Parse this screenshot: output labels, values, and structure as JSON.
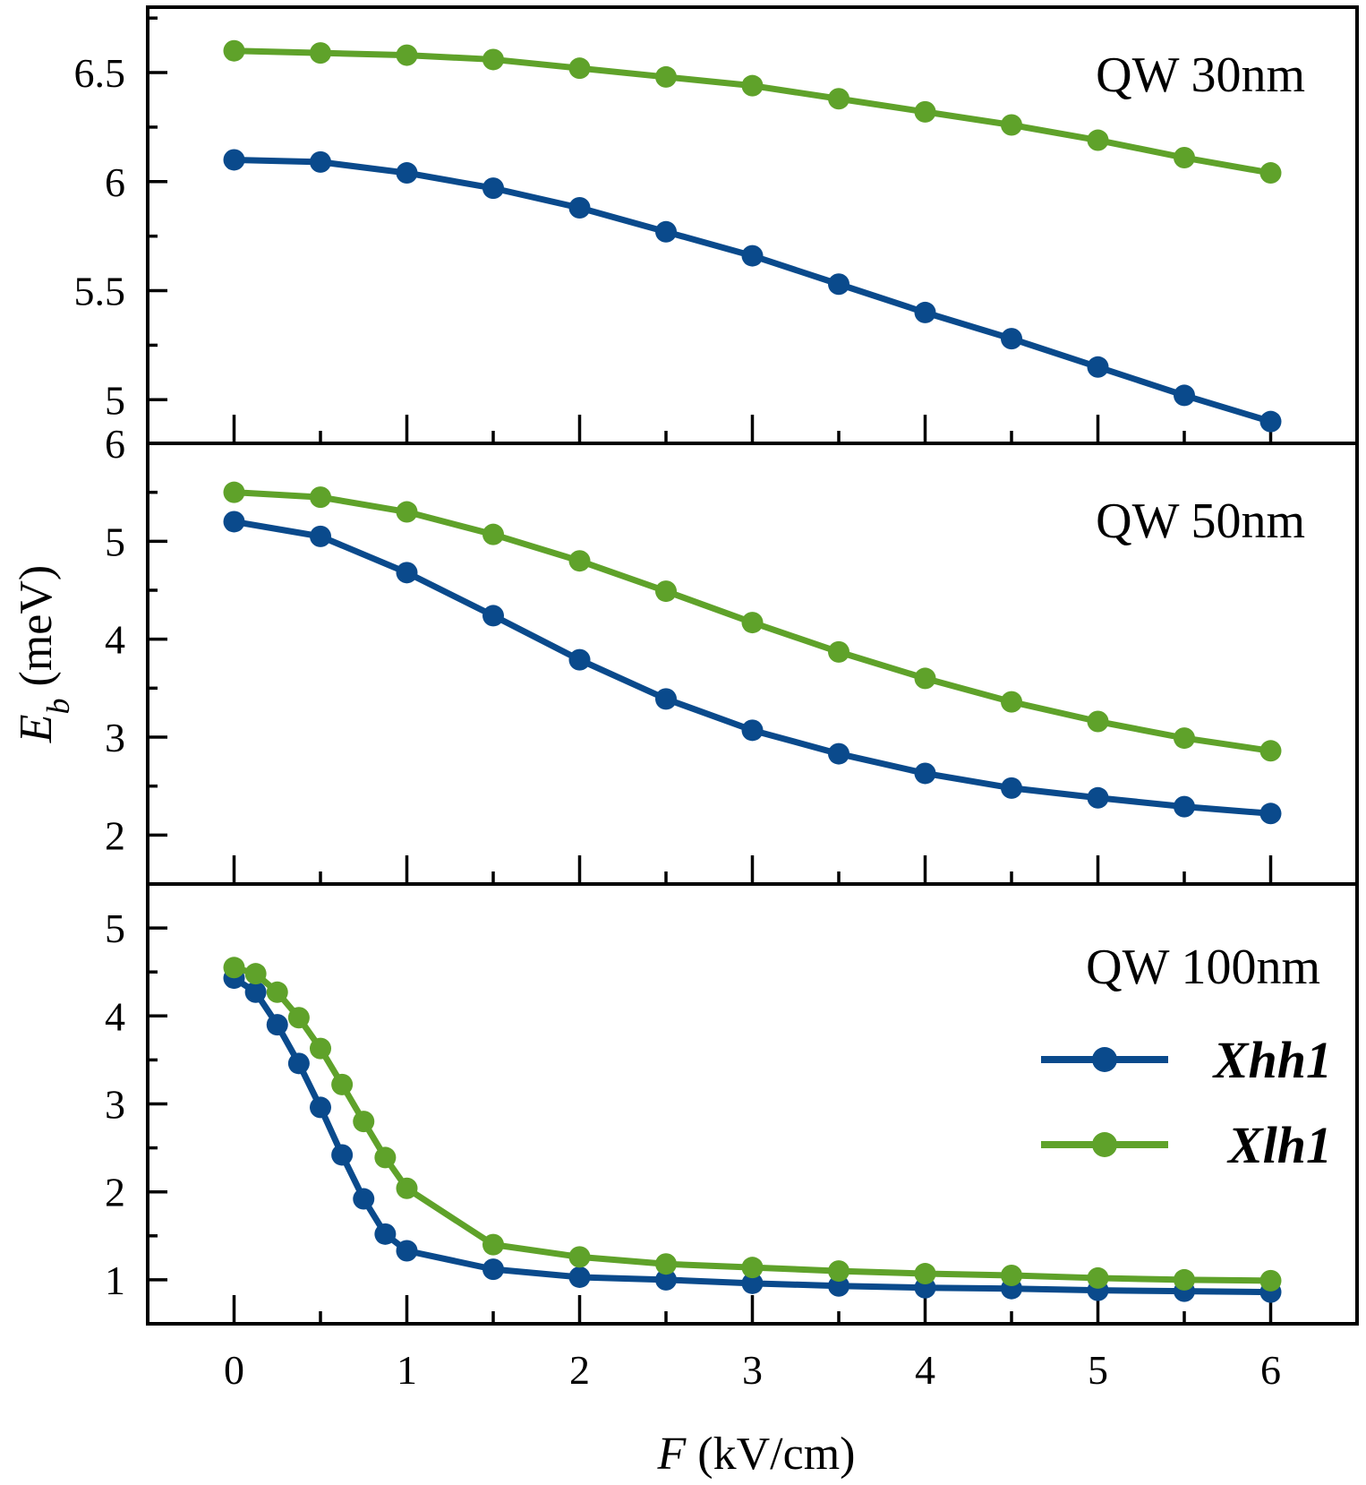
{
  "chart_data": {
    "type": "line",
    "xlabel_symbol": "F",
    "xlabel_unit": " (kV/cm)",
    "ylabel_symbol": "E",
    "ylabel_subscript": "b",
    "ylabel_unit": " (meV)",
    "xlim": [
      -0.5,
      6.5
    ],
    "xticks": [
      0,
      1,
      2,
      3,
      4,
      5,
      6
    ],
    "xtick_labels": [
      "0",
      "1",
      "2",
      "3",
      "4",
      "5",
      "6"
    ],
    "colors": {
      "Xhh1": "#0a4a8c",
      "Xlh1": "#5fa22a"
    },
    "legend": {
      "placement": "right",
      "entries": [
        "Xhh1",
        "Xlh1"
      ]
    },
    "panels": [
      {
        "label": "QW 30nm",
        "ylim": [
          4.8,
          6.8
        ],
        "yticks": [
          5,
          5.5,
          6,
          6.5
        ],
        "ytick_labels": [
          "5",
          "5.5",
          "6",
          "6.5"
        ],
        "series": [
          {
            "name": "Xhh1",
            "x": [
              0,
              0.5,
              1,
              1.5,
              2,
              2.5,
              3,
              3.5,
              4,
              4.5,
              5,
              5.5,
              6
            ],
            "y": [
              6.1,
              6.09,
              6.04,
              5.97,
              5.88,
              5.77,
              5.66,
              5.53,
              5.4,
              5.28,
              5.15,
              5.02,
              4.9
            ]
          },
          {
            "name": "Xlh1",
            "x": [
              0,
              0.5,
              1,
              1.5,
              2,
              2.5,
              3,
              3.5,
              4,
              4.5,
              5,
              5.5,
              6
            ],
            "y": [
              6.6,
              6.59,
              6.58,
              6.56,
              6.52,
              6.48,
              6.44,
              6.38,
              6.32,
              6.26,
              6.19,
              6.11,
              6.04
            ]
          }
        ]
      },
      {
        "label": "QW 50nm",
        "ylim": [
          1.5,
          6.0
        ],
        "yticks": [
          2,
          3,
          4,
          5,
          6
        ],
        "ytick_labels": [
          "2",
          "3",
          "4",
          "5",
          "6"
        ],
        "series": [
          {
            "name": "Xhh1",
            "x": [
              0,
              0.5,
              1,
              1.5,
              2,
              2.5,
              3,
              3.5,
              4,
              4.5,
              5,
              5.5,
              6
            ],
            "y": [
              5.2,
              5.05,
              4.68,
              4.24,
              3.79,
              3.39,
              3.07,
              2.83,
              2.63,
              2.48,
              2.38,
              2.29,
              2.22
            ]
          },
          {
            "name": "Xlh1",
            "x": [
              0,
              0.5,
              1,
              1.5,
              2,
              2.5,
              3,
              3.5,
              4,
              4.5,
              5,
              5.5,
              6
            ],
            "y": [
              5.5,
              5.45,
              5.3,
              5.07,
              4.8,
              4.49,
              4.17,
              3.87,
              3.6,
              3.36,
              3.16,
              2.99,
              2.86
            ]
          }
        ]
      },
      {
        "label": "QW 100nm",
        "ylim": [
          0.5,
          5.5
        ],
        "yticks": [
          1,
          2,
          3,
          4,
          5
        ],
        "ytick_labels": [
          "1",
          "2",
          "3",
          "4",
          "5"
        ],
        "series": [
          {
            "name": "Xhh1",
            "x": [
              0,
              0.125,
              0.25,
              0.375,
              0.5,
              0.625,
              0.75,
              0.875,
              1,
              1.5,
              2,
              2.5,
              3,
              3.5,
              4,
              4.5,
              5,
              5.5,
              6
            ],
            "y": [
              4.43,
              4.27,
              3.9,
              3.46,
              2.96,
              2.42,
              1.92,
              1.52,
              1.33,
              1.12,
              1.03,
              1.0,
              0.96,
              0.93,
              0.91,
              0.9,
              0.88,
              0.87,
              0.86
            ]
          },
          {
            "name": "Xlh1",
            "x": [
              0,
              0.125,
              0.25,
              0.375,
              0.5,
              0.625,
              0.75,
              0.875,
              1,
              1.5,
              2,
              2.5,
              3,
              3.5,
              4,
              4.5,
              5,
              5.5,
              6
            ],
            "y": [
              4.55,
              4.48,
              4.27,
              3.98,
              3.63,
              3.22,
              2.8,
              2.39,
              2.04,
              1.4,
              1.26,
              1.18,
              1.14,
              1.1,
              1.07,
              1.05,
              1.02,
              1.0,
              0.99
            ]
          }
        ]
      }
    ]
  }
}
